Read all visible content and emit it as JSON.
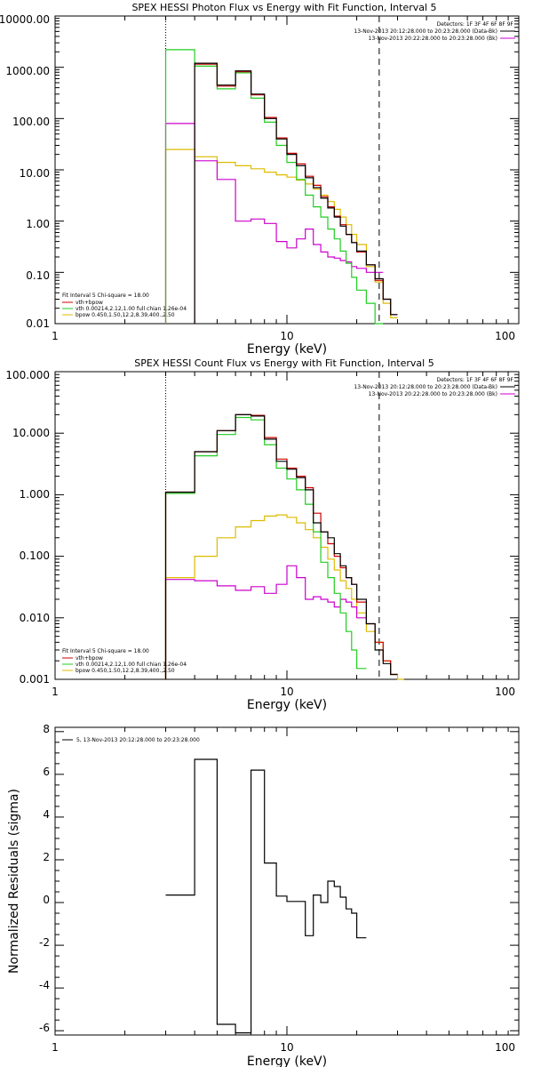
{
  "colors": {
    "data": "#000000",
    "total_fit": "#cc0000",
    "vth": "#22cc22",
    "bpow": "#ddbb00",
    "background": "#cc00cc"
  },
  "shared": {
    "detectors": "Detectors: 1F 3F 4F 6F 8F 9F",
    "data_label": "13-Nov-2013 20:12:28.000 to 20:23:28.000 (Data-Bk)",
    "bk_label": "13-Nov-2013 20:22:28.000 to 20:23:28.000 (Bk)",
    "fit_interval": "Fit Interval 5   Chi-square = 18.00",
    "fit_total": "vth+bpow",
    "fit_vth": "vth 0.00214,2.12,1.00  full chian 1.26e-04",
    "fit_bpow": "bpow 0.450,1.50,12.2,8.39,400.,2.50",
    "fit_range_lo_keV": 3,
    "fit_range_hi_keV": 25
  },
  "chart_data": [
    {
      "type": "line",
      "title": "SPEX HESSI Photon Flux vs Energy with Fit Function, Interval 5",
      "xlabel": "Energy (keV)",
      "ylabel": "",
      "xscale": "log",
      "yscale": "log",
      "xlim": [
        1,
        100
      ],
      "ylim": [
        0.01,
        10000
      ],
      "xticks": [
        1,
        10,
        100
      ],
      "xtick_labels": [
        "1",
        "10",
        "100"
      ],
      "yticks": [
        0.01,
        0.1,
        1,
        10,
        100,
        1000,
        10000
      ],
      "ytick_labels": [
        "0.01",
        "0.10",
        "1.00",
        "10.00",
        "100.00",
        "1000.00",
        "10000.00"
      ],
      "edges": [
        3,
        4,
        5,
        6,
        7,
        8,
        9,
        10,
        11,
        12,
        13,
        14,
        15,
        16,
        17,
        18,
        19,
        20,
        22,
        24,
        26,
        28,
        30
      ],
      "series": [
        {
          "key": "data",
          "values": [
            null,
            1200,
            450,
            850,
            300,
            100,
            40,
            20,
            12,
            7,
            4.5,
            2.8,
            1.8,
            1.2,
            0.8,
            0.55,
            0.38,
            0.26,
            0.14,
            0.075,
            0.03,
            0.015
          ]
        },
        {
          "key": "total_fit",
          "values": [
            null,
            1150,
            430,
            820,
            290,
            105,
            42,
            21,
            13,
            7.5,
            5,
            3,
            1.9,
            1.25,
            0.85,
            0.55,
            0.38,
            0.25,
            0.14,
            0.07,
            0.03,
            0.015
          ]
        },
        {
          "key": "vth",
          "values": [
            2200,
            1050,
            380,
            780,
            250,
            85,
            30,
            14,
            6.5,
            3.2,
            1.9,
            1.2,
            0.7,
            0.45,
            0.26,
            0.15,
            0.08,
            0.045,
            0.025,
            0.01,
            null,
            null
          ]
        },
        {
          "key": "bpow",
          "values": [
            25,
            18,
            14,
            12,
            10.5,
            9,
            8,
            7.2,
            6.3,
            5.3,
            4.2,
            3.2,
            2.4,
            1.7,
            1.2,
            0.85,
            0.55,
            0.35,
            0.13,
            0.065,
            0.025,
            0.013
          ]
        },
        {
          "key": "background",
          "values": [
            80,
            15,
            6.5,
            1.0,
            1.1,
            0.9,
            0.4,
            0.3,
            0.45,
            0.7,
            0.35,
            0.25,
            0.2,
            0.19,
            0.17,
            0.16,
            0.13,
            0.12,
            0.1,
            0.1,
            null,
            null
          ]
        }
      ]
    },
    {
      "type": "line",
      "title": "SPEX HESSI Count Flux vs Energy with Fit Function, Interval 5",
      "xlabel": "Energy (keV)",
      "ylabel": "",
      "xscale": "log",
      "yscale": "log",
      "xlim": [
        1,
        100
      ],
      "ylim": [
        0.001,
        100
      ],
      "xticks": [
        1,
        10,
        100
      ],
      "xtick_labels": [
        "1",
        "10",
        "100"
      ],
      "yticks": [
        0.001,
        0.01,
        0.1,
        1,
        10,
        100
      ],
      "ytick_labels": [
        "0.001",
        "0.010",
        "0.100",
        "1.000",
        "10.000",
        "100.000"
      ],
      "edges": [
        3,
        4,
        5,
        6,
        7,
        8,
        9,
        10,
        11,
        12,
        13,
        14,
        15,
        16,
        17,
        18,
        19,
        20,
        22,
        24,
        26,
        28,
        30,
        32
      ],
      "series": [
        {
          "key": "data",
          "values": [
            1.1,
            5,
            11,
            20,
            19,
            8,
            3.5,
            2.6,
            1.9,
            1.2,
            0.35,
            0.25,
            0.2,
            0.11,
            0.07,
            0.045,
            0.035,
            0.02,
            0.008,
            0.003,
            0.0018,
            0.0012,
            null
          ]
        },
        {
          "key": "total_fit",
          "values": [
            1.1,
            5,
            11,
            20,
            19.5,
            8.5,
            3.8,
            2.7,
            2.0,
            1.3,
            0.5,
            0.25,
            0.16,
            0.1,
            0.065,
            0.045,
            0.035,
            0.018,
            0.008,
            0.004,
            0.002,
            0.0012,
            null
          ]
        },
        {
          "key": "vth",
          "values": [
            1.05,
            4.3,
            9.5,
            18,
            16.5,
            6.5,
            2.7,
            1.8,
            1.2,
            0.7,
            0.25,
            0.08,
            0.045,
            0.025,
            0.012,
            0.006,
            0.003,
            0.0015,
            null,
            null,
            null,
            null,
            null
          ]
        },
        {
          "key": "bpow",
          "values": [
            0.045,
            0.1,
            0.2,
            0.3,
            0.38,
            0.45,
            0.47,
            0.43,
            0.35,
            0.27,
            0.2,
            0.14,
            0.09,
            0.06,
            0.04,
            0.03,
            0.02,
            0.012,
            0.006,
            0.004,
            0.002,
            0.0012,
            0.0008
          ]
        },
        {
          "key": "background",
          "values": [
            0.042,
            0.04,
            0.033,
            0.028,
            0.032,
            0.025,
            0.035,
            0.07,
            0.045,
            0.02,
            0.022,
            0.02,
            0.018,
            0.015,
            0.02,
            0.018,
            0.015,
            0.01,
            null,
            null,
            null,
            null,
            null
          ]
        }
      ]
    },
    {
      "type": "line",
      "title": "",
      "xlabel": "Energy (keV)",
      "ylabel": "Normalized Residuals (sigma)",
      "xscale": "log",
      "yscale": "linear",
      "xlim": [
        1,
        100
      ],
      "ylim": [
        -6.2,
        8.2
      ],
      "xticks": [
        1,
        10,
        100
      ],
      "xtick_labels": [
        "1",
        "10",
        "100"
      ],
      "yticks": [
        -6,
        -4,
        -2,
        0,
        2,
        4,
        6,
        8
      ],
      "ytick_labels": [
        "-6",
        "-4",
        "-2",
        "0",
        "2",
        "4",
        "6",
        "8"
      ],
      "legend": "5, 13-Nov-2013 20:12:28.000 to 20:23:28.000",
      "edges": [
        3,
        4,
        5,
        6,
        7,
        8,
        9,
        10,
        11,
        12,
        13,
        14,
        15,
        16,
        17,
        18,
        19,
        20,
        22,
        24
      ],
      "series": [
        {
          "key": "data",
          "values": [
            0.35,
            6.7,
            -5.7,
            -6.1,
            6.2,
            1.85,
            0.3,
            0.05,
            0.05,
            -1.55,
            0.35,
            0.0,
            1.0,
            0.75,
            0.25,
            -0.3,
            -0.5,
            -1.65,
            null
          ]
        }
      ]
    }
  ]
}
